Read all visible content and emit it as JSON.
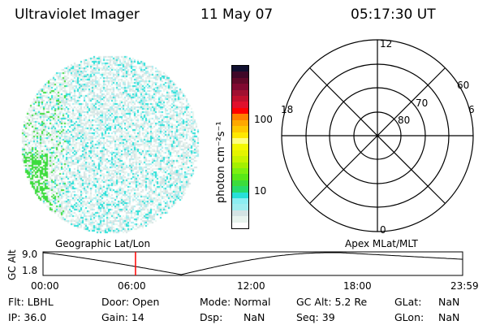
{
  "header": {
    "instrument": "Ultraviolet Imager",
    "date": "11 May 07",
    "time": "05:17:30 UT"
  },
  "colorbar": {
    "label": "photon cm⁻²s⁻¹",
    "ticks": [
      "100",
      "10"
    ],
    "colors": [
      "#ffffff",
      "#e8f4ee",
      "#d4e4e4",
      "#a0eef0",
      "#8ceef2",
      "#28e0d8",
      "#28dc6c",
      "#3cdc3c",
      "#58e818",
      "#7cf010",
      "#a4f000",
      "#c8f400",
      "#e4f400",
      "#f4f800",
      "#ffff80",
      "#ffe800",
      "#ffc800",
      "#ffa800",
      "#ff8000",
      "#ff0000",
      "#e0102c",
      "#c0102c",
      "#a01030",
      "#800830",
      "#600828",
      "#400828",
      "#101030"
    ]
  },
  "polar": {
    "mlt_labels": [
      "12",
      "18",
      "6",
      "0"
    ],
    "lat_labels": [
      "60",
      "70",
      "80"
    ]
  },
  "timeline": {
    "left_label": "Geographic Lat/Lon",
    "right_label": "Apex MLat/MLT",
    "y_axis_label": "GC Alt",
    "y_ticks": [
      "9.0",
      "1.8"
    ],
    "x_ticks": [
      "00:00",
      "06:00",
      "12:00",
      "18:00",
      "23:59"
    ],
    "current_time_hours": 5.29,
    "marker_color": "#ff0000"
  },
  "info": {
    "flt": "Flt: LBHL",
    "ip": "IP: 36.0",
    "door": "Door: Open",
    "gain": "Gain: 14",
    "mode": "Mode: Normal",
    "dsp_label": "Dsp:",
    "dsp_value": "NaN",
    "gc_alt": "GC Alt: 5.2 Re",
    "seq": "Seq: 39",
    "glat_label": "GLat:",
    "glat_value": "NaN",
    "glon_label": "GLon:",
    "glon_value": "NaN"
  }
}
